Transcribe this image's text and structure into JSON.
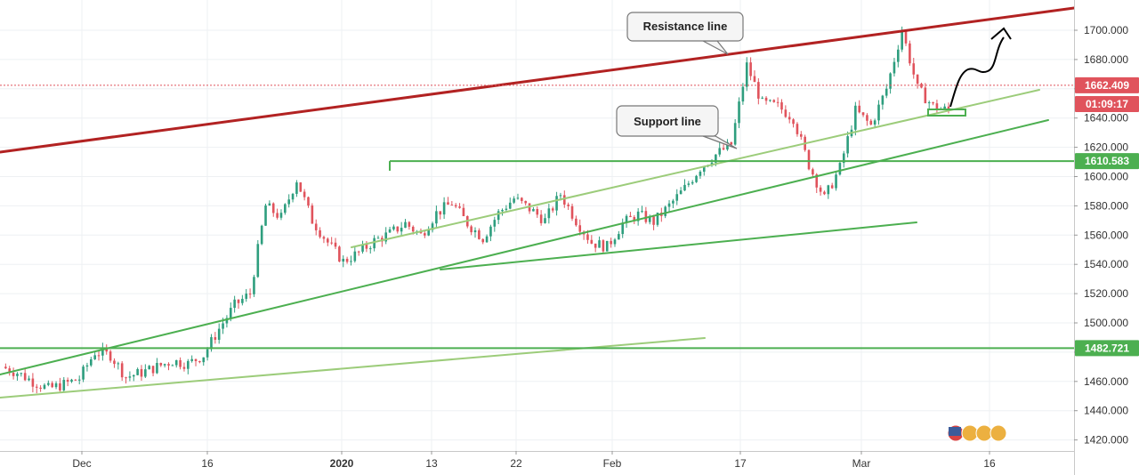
{
  "chart_data": {
    "type": "candlestick",
    "y_ticks": [
      "1700.000",
      "1680.000",
      "1660.000",
      "1640.000",
      "1620.000",
      "1600.000",
      "1580.000",
      "1560.000",
      "1540.000",
      "1520.000",
      "1500.000",
      "1480.000",
      "1460.000",
      "1440.000",
      "1420.000"
    ],
    "y_tick_values": [
      1700,
      1680,
      1660,
      1640,
      1620,
      1600,
      1580,
      1560,
      1540,
      1520,
      1500,
      1480,
      1460,
      1440,
      1420
    ],
    "x_ticks": [
      "Dec",
      "16",
      "2020",
      "13",
      "22",
      "Feb",
      "17",
      "Mar",
      "16"
    ],
    "ylim": [
      1412,
      1734
    ],
    "grid": true,
    "annotations": [
      {
        "text": "Resistance line"
      },
      {
        "text": "Support line"
      }
    ],
    "price_tags": [
      {
        "id": "current",
        "text": "1662.409",
        "value": 1662.409,
        "color": "#e0535c"
      },
      {
        "id": "timer",
        "text": "01:09:17",
        "value": 1650,
        "color": "#e0535c"
      },
      {
        "id": "level1",
        "text": "1610.583",
        "value": 1610.583,
        "color": "#4caf50"
      },
      {
        "id": "level2",
        "text": "1482.721",
        "value": 1482.721,
        "color": "#4caf50"
      }
    ],
    "horizontal_levels": [
      1610.583,
      1482.721
    ],
    "current_price": 1662.409,
    "close_path": [
      1470,
      1466,
      1460,
      1455,
      1458,
      1462,
      1480,
      1478,
      1463,
      1466,
      1470,
      1474,
      1472,
      1478,
      1496,
      1512,
      1520,
      1580,
      1572,
      1598,
      1570,
      1555,
      1542,
      1548,
      1556,
      1561,
      1568,
      1560,
      1575,
      1582,
      1568,
      1558,
      1575,
      1585,
      1578,
      1570,
      1588,
      1570,
      1555,
      1552,
      1568,
      1574,
      1569,
      1580,
      1592,
      1606,
      1615,
      1622,
      1676,
      1650,
      1648,
      1640,
      1608,
      1585,
      1606,
      1645,
      1635,
      1660,
      1700,
      1660,
      1648,
      1645
    ],
    "colors": {
      "up": "#2e9e7e",
      "down": "#e0535c",
      "resistance": "#b22222",
      "support_light": "#9ccc7a",
      "support_dark": "#4caf50",
      "forecast": "#000000"
    }
  }
}
